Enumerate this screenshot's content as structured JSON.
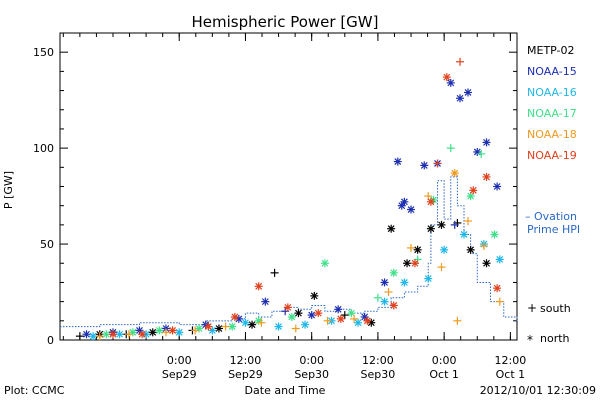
{
  "chart_data": {
    "type": "scatter",
    "title": "Hemispheric Power [GW]",
    "ylabel": "P [GW]",
    "xlabel": "Date and Time",
    "ylim": [
      0,
      160
    ],
    "y_ticks": [
      0,
      50,
      100,
      150
    ],
    "xlim": [
      -0.9,
      2.55
    ],
    "x_ticks": [
      {
        "x": 0,
        "time": "0:00",
        "date": "Sep29"
      },
      {
        "x": 0.5,
        "time": "12:00",
        "date": "Sep29"
      },
      {
        "x": 1,
        "time": "0:00",
        "date": "Sep30"
      },
      {
        "x": 1.5,
        "time": "12:00",
        "date": "Sep30"
      },
      {
        "x": 2,
        "time": "0:00",
        "date": "Oct 1"
      },
      {
        "x": 2.5,
        "time": "12:00",
        "date": "Oct 1"
      }
    ],
    "grid": false,
    "legend_position": "right",
    "markers": {
      "south": "+",
      "north": "*"
    },
    "ovation_label_1": "– Ovation",
    "ovation_label_2": "Prime HPI",
    "ovation_color": "#2a68c8",
    "series": [
      {
        "name": "METP-02",
        "color": "#000000",
        "points": [
          [
            -0.75,
            2,
            "s"
          ],
          [
            -0.6,
            3,
            "n"
          ],
          [
            -0.4,
            3,
            "s"
          ],
          [
            -0.2,
            4,
            "n"
          ],
          [
            0.1,
            5,
            "s"
          ],
          [
            0.3,
            6,
            "n"
          ],
          [
            0.55,
            8,
            "n"
          ],
          [
            0.72,
            35,
            "s"
          ],
          [
            0.9,
            14,
            "n"
          ],
          [
            1.02,
            23,
            "n"
          ],
          [
            1.25,
            13,
            "s"
          ],
          [
            1.45,
            9,
            "n"
          ],
          [
            1.6,
            58,
            "n"
          ],
          [
            1.72,
            40,
            "n"
          ],
          [
            1.8,
            47,
            "n"
          ],
          [
            1.9,
            58,
            "n"
          ],
          [
            1.98,
            60,
            "n"
          ],
          [
            2.1,
            61,
            "s"
          ],
          [
            2.2,
            47,
            "n"
          ],
          [
            2.32,
            40,
            "n"
          ]
        ]
      },
      {
        "name": "NOAA-15",
        "color": "#1c2fb0",
        "points": [
          [
            -0.7,
            3,
            "n"
          ],
          [
            -0.5,
            4,
            "n"
          ],
          [
            -0.3,
            5,
            "n"
          ],
          [
            -0.1,
            6,
            "n"
          ],
          [
            0.2,
            8,
            "n"
          ],
          [
            0.45,
            11,
            "n"
          ],
          [
            0.65,
            20,
            "n"
          ],
          [
            0.8,
            15,
            "s"
          ],
          [
            1.0,
            13,
            "n"
          ],
          [
            1.2,
            16,
            "n"
          ],
          [
            1.4,
            12,
            "n"
          ],
          [
            1.55,
            30,
            "n"
          ],
          [
            1.65,
            93,
            "n"
          ],
          [
            1.68,
            70,
            "n"
          ],
          [
            1.75,
            68,
            "n"
          ],
          [
            1.85,
            91,
            "n"
          ],
          [
            1.95,
            92,
            "n"
          ],
          [
            2.05,
            134,
            "n"
          ],
          [
            2.12,
            126,
            "n"
          ],
          [
            2.18,
            129,
            "n"
          ],
          [
            2.25,
            98,
            "n"
          ],
          [
            2.32,
            103,
            "n"
          ],
          [
            2.4,
            80,
            "n"
          ],
          [
            1.7,
            72,
            "n"
          ],
          [
            2.08,
            60,
            "s"
          ]
        ]
      },
      {
        "name": "NOAA-16",
        "color": "#20b8e8",
        "points": [
          [
            -0.65,
            2,
            "n"
          ],
          [
            -0.45,
            3,
            "n"
          ],
          [
            -0.25,
            3,
            "n"
          ],
          [
            0.0,
            4,
            "n"
          ],
          [
            0.25,
            5,
            "n"
          ],
          [
            0.5,
            9,
            "n"
          ],
          [
            0.75,
            7,
            "n"
          ],
          [
            0.95,
            8,
            "n"
          ],
          [
            1.15,
            10,
            "n"
          ],
          [
            1.35,
            9,
            "n"
          ],
          [
            1.55,
            20,
            "n"
          ],
          [
            1.7,
            30,
            "n"
          ],
          [
            1.88,
            32,
            "n"
          ],
          [
            2.0,
            47,
            "n"
          ],
          [
            2.15,
            55,
            "n"
          ],
          [
            2.3,
            50,
            "n"
          ],
          [
            2.42,
            42,
            "n"
          ]
        ]
      },
      {
        "name": "NOAA-17",
        "color": "#3ee08a",
        "points": [
          [
            -0.55,
            3,
            "n"
          ],
          [
            -0.35,
            4,
            "n"
          ],
          [
            -0.15,
            5,
            "n"
          ],
          [
            0.15,
            6,
            "n"
          ],
          [
            0.4,
            7,
            "n"
          ],
          [
            0.6,
            10,
            "n"
          ],
          [
            0.85,
            12,
            "n"
          ],
          [
            1.1,
            40,
            "n"
          ],
          [
            1.3,
            14,
            "n"
          ],
          [
            1.5,
            22,
            "s"
          ],
          [
            1.62,
            35,
            "n"
          ],
          [
            1.8,
            42,
            "s"
          ],
          [
            1.92,
            73,
            "n"
          ],
          [
            2.05,
            100,
            "s"
          ],
          [
            2.2,
            75,
            "n"
          ],
          [
            2.28,
            97,
            "s"
          ],
          [
            2.38,
            55,
            "n"
          ]
        ]
      },
      {
        "name": "NOAA-18",
        "color": "#f09a20",
        "points": [
          [
            -0.6,
            2,
            "s"
          ],
          [
            -0.38,
            3,
            "s"
          ],
          [
            -0.1,
            4,
            "s"
          ],
          [
            0.12,
            5,
            "s"
          ],
          [
            0.35,
            7,
            "s"
          ],
          [
            0.62,
            9,
            "s"
          ],
          [
            0.88,
            6,
            "s"
          ],
          [
            1.12,
            10,
            "s"
          ],
          [
            1.32,
            11,
            "s"
          ],
          [
            1.58,
            25,
            "s"
          ],
          [
            1.75,
            48,
            "s"
          ],
          [
            1.88,
            75,
            "s"
          ],
          [
            1.98,
            38,
            "s"
          ],
          [
            2.08,
            87,
            "n"
          ],
          [
            2.18,
            62,
            "s"
          ],
          [
            2.3,
            49,
            "s"
          ],
          [
            2.42,
            20,
            "s"
          ],
          [
            2.1,
            10,
            "s"
          ]
        ]
      },
      {
        "name": "NOAA-19",
        "color": "#e0401c",
        "points": [
          [
            -0.5,
            3,
            "n"
          ],
          [
            -0.28,
            3,
            "n"
          ],
          [
            -0.05,
            5,
            "n"
          ],
          [
            0.22,
            7,
            "n"
          ],
          [
            0.42,
            12,
            "n"
          ],
          [
            0.6,
            28,
            "n"
          ],
          [
            0.82,
            17,
            "n"
          ],
          [
            1.05,
            14,
            "n"
          ],
          [
            1.22,
            11,
            "n"
          ],
          [
            1.42,
            10,
            "n"
          ],
          [
            1.62,
            18,
            "n"
          ],
          [
            1.78,
            40,
            "n"
          ],
          [
            1.9,
            72,
            "n"
          ],
          [
            2.02,
            137,
            "n"
          ],
          [
            2.12,
            145,
            "s"
          ],
          [
            2.22,
            78,
            "n"
          ],
          [
            2.32,
            85,
            "n"
          ],
          [
            2.4,
            27,
            "n"
          ],
          [
            1.95,
            92,
            "s"
          ]
        ]
      }
    ],
    "ovation_hpi": [
      [
        -0.9,
        7
      ],
      [
        -0.6,
        8
      ],
      [
        -0.3,
        9
      ],
      [
        0.0,
        8
      ],
      [
        0.2,
        10
      ],
      [
        0.4,
        11
      ],
      [
        0.5,
        14
      ],
      [
        0.6,
        12
      ],
      [
        0.7,
        15
      ],
      [
        0.8,
        17
      ],
      [
        0.9,
        16
      ],
      [
        1.0,
        18
      ],
      [
        1.1,
        15
      ],
      [
        1.2,
        16
      ],
      [
        1.3,
        14
      ],
      [
        1.4,
        15
      ],
      [
        1.5,
        17
      ],
      [
        1.6,
        22
      ],
      [
        1.7,
        25
      ],
      [
        1.8,
        28
      ],
      [
        1.88,
        40
      ],
      [
        1.9,
        60
      ],
      [
        1.95,
        83
      ],
      [
        2.0,
        63
      ],
      [
        2.05,
        85
      ],
      [
        2.1,
        70
      ],
      [
        2.15,
        55
      ],
      [
        2.2,
        45
      ],
      [
        2.25,
        30
      ],
      [
        2.35,
        20
      ],
      [
        2.45,
        12
      ],
      [
        2.55,
        10
      ]
    ]
  },
  "footer": {
    "plot_source": "Plot: CCMC",
    "timestamp": "2012/10/01 12:30:09"
  },
  "legend_side": {
    "south_label": "south",
    "north_label": "north"
  }
}
